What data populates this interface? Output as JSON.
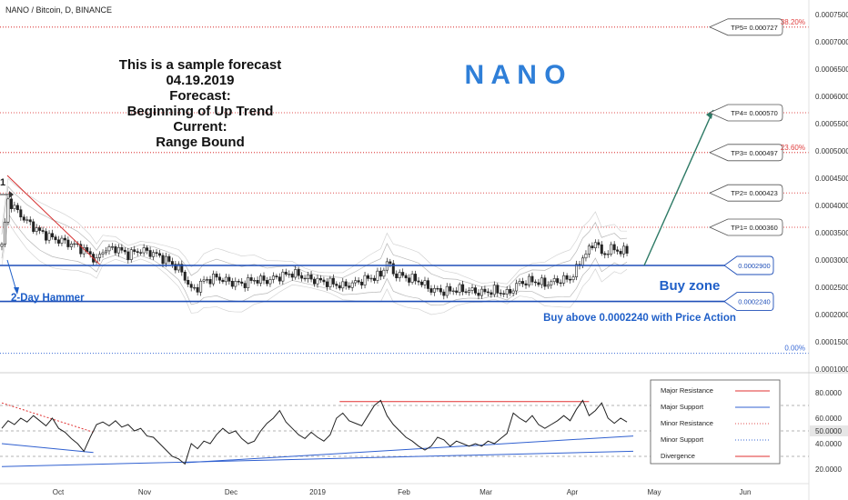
{
  "header": {
    "symbol_label": "NANO / Bitcoin, D, BINANCE"
  },
  "colors": {
    "candle": "#222222",
    "zone_line": "#1f4fb8",
    "resistance_dotted": "#e05050",
    "support_dotted": "#3b6bd6",
    "fib_text": "#e04040",
    "arrow": "#2e7a66",
    "band": "#b8b8b8",
    "downtrend": "#d63030",
    "osc_line": "#222222",
    "divergence": "#e03030",
    "major_support": "#3060d0",
    "blue_text": "#1f5fc8"
  },
  "annotations": {
    "forecast_lines": [
      "This is a sample forecast",
      "04.19.2019",
      "Forecast:",
      "Beginning of Up Trend",
      "Current:",
      "Range Bound"
    ],
    "watermark": "N A N O",
    "hammer_label": "2-Day Hammer",
    "buy_zone_label": "Buy zone",
    "buy_above_label": "Buy above 0.0002240 with Price Action",
    "marker_glyph": "1",
    "fib_labels": [
      {
        "text": "38.20%",
        "price": 0.000727
      },
      {
        "text": "23.60%",
        "price": 0.000497
      },
      {
        "text": "0.00%",
        "price": 0.000129
      }
    ],
    "target_boxes": [
      {
        "text": "TP5= 0.000727",
        "price": 0.000727
      },
      {
        "text": "TP4= 0.000570",
        "price": 0.00057
      },
      {
        "text": "TP3= 0.000497",
        "price": 0.000497
      },
      {
        "text": "TP2= 0.000423",
        "price": 0.000423
      },
      {
        "text": "TP1= 0.000360",
        "price": 0.00036
      }
    ],
    "zone_boxes": [
      {
        "text": "0.0002900",
        "price": 0.00029
      },
      {
        "text": "0.0002240",
        "price": 0.000224
      }
    ]
  },
  "legend": {
    "items": [
      {
        "label": "Major Resistance",
        "style": "solid",
        "color": "#e03030"
      },
      {
        "label": "Major Support",
        "style": "solid",
        "color": "#3060d0"
      },
      {
        "label": "Minor Resistance",
        "style": "dotted",
        "color": "#e05050"
      },
      {
        "label": "Minor Support",
        "style": "dotted",
        "color": "#3b6bd6"
      },
      {
        "label": "Divergence",
        "style": "solid",
        "color": "#e03030"
      }
    ]
  },
  "chart_data": [
    {
      "type": "candlestick",
      "title": "",
      "ylim": [
        0.0001,
        0.00075
      ],
      "y_ticks": [
        "0.0007500",
        "0.0007000",
        "0.0006500",
        "0.0006000",
        "0.0005500",
        "0.0005000",
        "0.0004500",
        "0.0004000",
        "0.0003500",
        "0.0003000",
        "0.0002500",
        "0.0002000",
        "0.0001500",
        "0.0001000"
      ],
      "x_ticks": [
        "Oct",
        "Nov",
        "Dec",
        "2019",
        "Feb",
        "Mar",
        "Apr",
        "May",
        "Jun"
      ],
      "close_path": [
        [
          0,
          0.000325
        ],
        [
          2,
          0.00041
        ],
        [
          4,
          0.000395
        ],
        [
          8,
          0.00037
        ],
        [
          12,
          0.000352
        ],
        [
          16,
          0.00034
        ],
        [
          20,
          0.000333
        ],
        [
          24,
          0.000325
        ],
        [
          28,
          0.00031
        ],
        [
          30,
          0.000298
        ],
        [
          32,
          0.000318
        ],
        [
          36,
          0.000322
        ],
        [
          40,
          0.00031
        ],
        [
          44,
          0.000318
        ],
        [
          48,
          0.000312
        ],
        [
          52,
          0.0003
        ],
        [
          56,
          0.000285
        ],
        [
          58,
          0.000268
        ],
        [
          60,
          0.000245
        ],
        [
          62,
          0.00025
        ],
        [
          64,
          0.000262
        ],
        [
          68,
          0.000268
        ],
        [
          72,
          0.00026
        ],
        [
          76,
          0.000256
        ],
        [
          80,
          0.000264
        ],
        [
          84,
          0.000262
        ],
        [
          88,
          0.00027
        ],
        [
          92,
          0.000276
        ],
        [
          96,
          0.000268
        ],
        [
          100,
          0.000262
        ],
        [
          104,
          0.000258
        ],
        [
          108,
          0.000252
        ],
        [
          112,
          0.000258
        ],
        [
          116,
          0.000266
        ],
        [
          120,
          0.000272
        ],
        [
          122,
          0.000298
        ],
        [
          124,
          0.000276
        ],
        [
          128,
          0.000268
        ],
        [
          132,
          0.000262
        ],
        [
          136,
          0.000246
        ],
        [
          140,
          0.000242
        ],
        [
          144,
          0.000246
        ],
        [
          148,
          0.000244
        ],
        [
          152,
          0.00024
        ],
        [
          156,
          0.000244
        ],
        [
          160,
          0.000238
        ],
        [
          164,
          0.000258
        ],
        [
          168,
          0.000262
        ],
        [
          172,
          0.000256
        ],
        [
          176,
          0.000262
        ],
        [
          180,
          0.000266
        ],
        [
          182,
          0.000282
        ],
        [
          184,
          0.000306
        ],
        [
          186,
          0.000318
        ],
        [
          188,
          0.000336
        ],
        [
          190,
          0.00031
        ],
        [
          192,
          0.000316
        ],
        [
          194,
          0.000322
        ],
        [
          196,
          0.000314
        ],
        [
          198,
          0.000318
        ]
      ]
    },
    {
      "type": "line",
      "title": "",
      "ylim": [
        10,
        90
      ],
      "y_ticks": [
        "80.0000",
        "60.0000",
        "40.0000",
        "20.0000"
      ],
      "current_value_label": "50.0000",
      "values": [
        [
          0,
          52
        ],
        [
          2,
          58
        ],
        [
          4,
          55
        ],
        [
          6,
          60
        ],
        [
          8,
          57
        ],
        [
          10,
          62
        ],
        [
          12,
          58
        ],
        [
          14,
          54
        ],
        [
          16,
          60
        ],
        [
          18,
          52
        ],
        [
          20,
          49
        ],
        [
          22,
          44
        ],
        [
          24,
          40
        ],
        [
          26,
          34
        ],
        [
          28,
          45
        ],
        [
          30,
          55
        ],
        [
          32,
          57
        ],
        [
          34,
          54
        ],
        [
          36,
          58
        ],
        [
          38,
          53
        ],
        [
          40,
          55
        ],
        [
          42,
          50
        ],
        [
          44,
          52
        ],
        [
          46,
          46
        ],
        [
          48,
          45
        ],
        [
          50,
          40
        ],
        [
          52,
          35
        ],
        [
          54,
          30
        ],
        [
          56,
          28
        ],
        [
          58,
          24
        ],
        [
          60,
          40
        ],
        [
          62,
          36
        ],
        [
          64,
          42
        ],
        [
          66,
          40
        ],
        [
          68,
          47
        ],
        [
          70,
          52
        ],
        [
          72,
          48
        ],
        [
          74,
          50
        ],
        [
          76,
          44
        ],
        [
          78,
          40
        ],
        [
          80,
          42
        ],
        [
          82,
          50
        ],
        [
          84,
          56
        ],
        [
          86,
          60
        ],
        [
          88,
          66
        ],
        [
          90,
          57
        ],
        [
          92,
          52
        ],
        [
          94,
          47
        ],
        [
          96,
          44
        ],
        [
          98,
          49
        ],
        [
          100,
          45
        ],
        [
          102,
          42
        ],
        [
          104,
          47
        ],
        [
          106,
          60
        ],
        [
          108,
          64
        ],
        [
          110,
          58
        ],
        [
          112,
          56
        ],
        [
          114,
          54
        ],
        [
          116,
          62
        ],
        [
          118,
          70
        ],
        [
          120,
          74
        ],
        [
          122,
          62
        ],
        [
          124,
          55
        ],
        [
          126,
          50
        ],
        [
          128,
          45
        ],
        [
          130,
          42
        ],
        [
          132,
          38
        ],
        [
          134,
          35
        ],
        [
          136,
          38
        ],
        [
          138,
          45
        ],
        [
          140,
          43
        ],
        [
          142,
          38
        ],
        [
          144,
          42
        ],
        [
          146,
          40
        ],
        [
          148,
          38
        ],
        [
          150,
          40
        ],
        [
          152,
          38
        ],
        [
          154,
          42
        ],
        [
          156,
          40
        ],
        [
          158,
          44
        ],
        [
          160,
          48
        ],
        [
          162,
          64
        ],
        [
          164,
          60
        ],
        [
          166,
          57
        ],
        [
          168,
          62
        ],
        [
          170,
          55
        ],
        [
          172,
          52
        ],
        [
          174,
          55
        ],
        [
          176,
          58
        ],
        [
          178,
          62
        ],
        [
          180,
          58
        ],
        [
          182,
          67
        ],
        [
          184,
          74
        ],
        [
          186,
          62
        ],
        [
          188,
          66
        ],
        [
          190,
          72
        ],
        [
          192,
          60
        ],
        [
          194,
          56
        ],
        [
          196,
          60
        ],
        [
          198,
          57
        ]
      ],
      "divergence_top": [
        [
          107,
          73
        ],
        [
          186,
          73
        ]
      ],
      "divergence_down": [
        [
          0,
          72
        ],
        [
          29,
          49
        ]
      ],
      "support_lines": [
        [
          [
            0,
            40
          ],
          [
            29,
            33
          ]
        ],
        [
          [
            58,
            25
          ],
          [
            200,
            46
          ]
        ],
        [
          [
            0,
            22
          ],
          [
            200,
            34
          ]
        ]
      ]
    }
  ]
}
